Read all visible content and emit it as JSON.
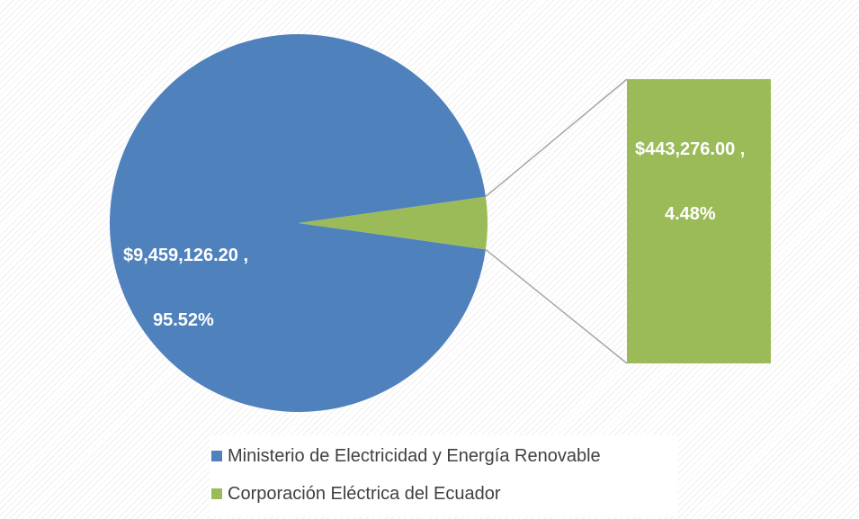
{
  "chart_data": {
    "type": "pie",
    "subtype": "bar-of-pie",
    "title": "",
    "series": [
      {
        "name": "Ministerio de Electricidad y Energía Renovable",
        "value": 9459126.2,
        "percent": 95.52,
        "label_line1": "$9,459,126.20 ,",
        "label_line2": "95.52%",
        "color": "#4f81bd"
      },
      {
        "name": "Corporación Eléctrica del Ecuador",
        "value": 443276.0,
        "percent": 4.48,
        "label_line1": "$443,276.00 ,",
        "label_line2": "4.48%",
        "color": "#9bbb59"
      }
    ],
    "legend_position": "bottom",
    "connector_color": "#a6a6a6"
  }
}
